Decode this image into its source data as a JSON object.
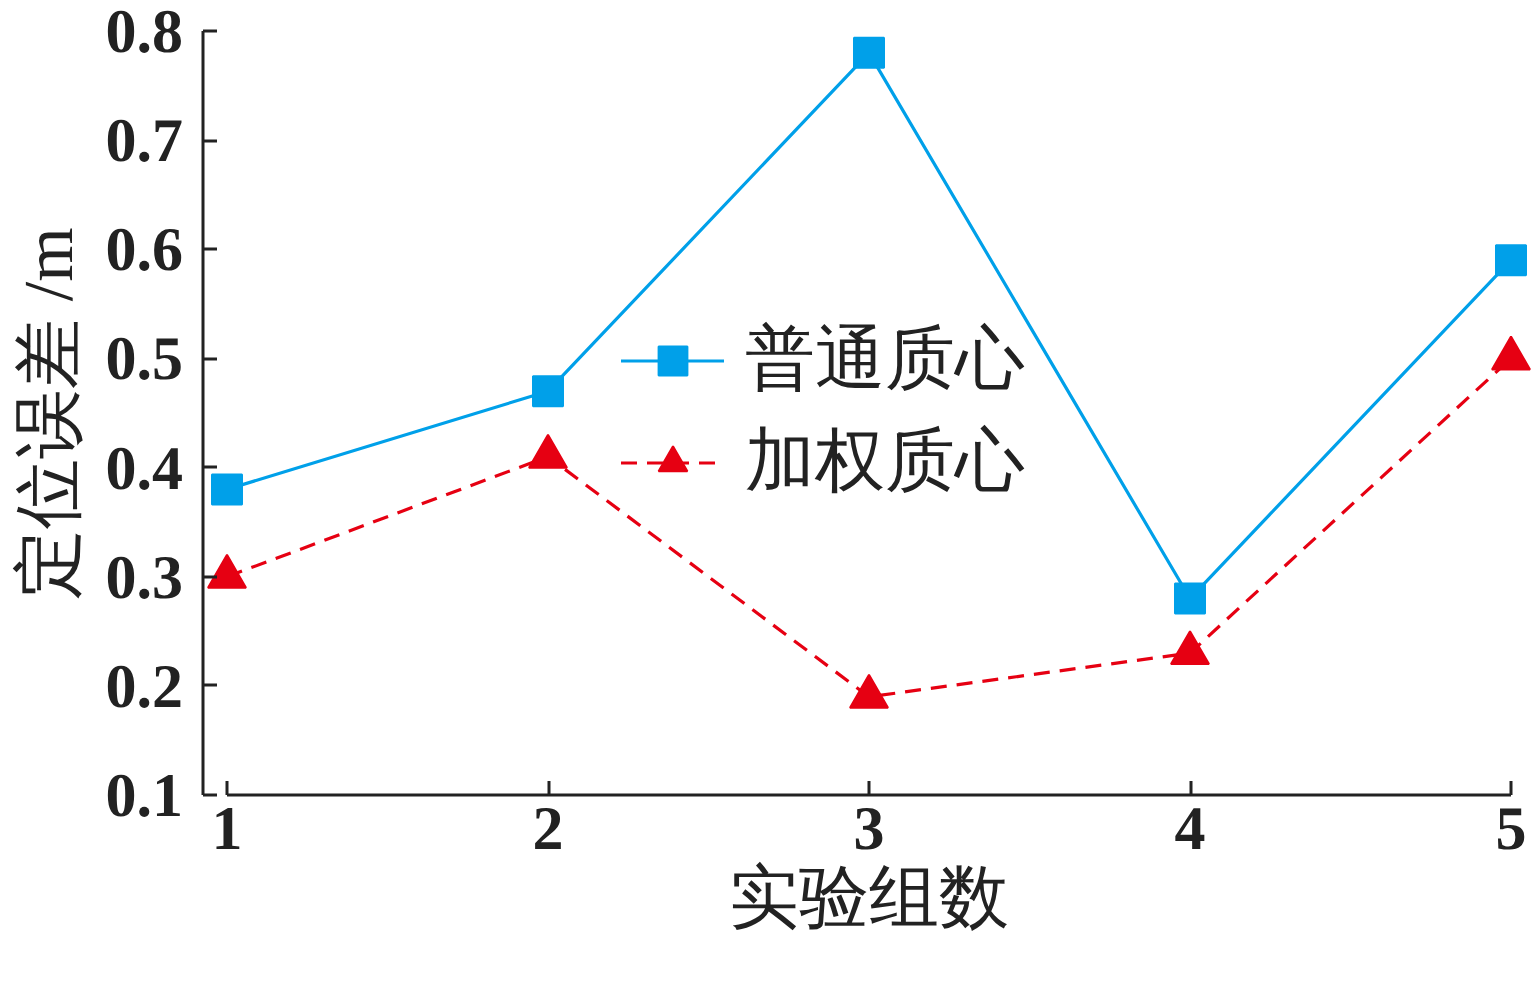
{
  "chart_data": {
    "type": "line",
    "xlabel": "实验组数",
    "ylabel": "定位误差 /m",
    "x": [
      1,
      2,
      3,
      4,
      5
    ],
    "xlim": [
      1,
      5
    ],
    "xticks": [
      1,
      2,
      3,
      4,
      5
    ],
    "ylim": [
      0.1,
      0.8
    ],
    "yticks": [
      0.1,
      0.2,
      0.3,
      0.4,
      0.5,
      0.6,
      0.7,
      0.8
    ],
    "grid": false,
    "legend": "center",
    "series": [
      {
        "name": "普通质心",
        "color": "#00a0e9",
        "marker": "square",
        "line_style": "solid",
        "values": [
          0.38,
          0.47,
          0.78,
          0.28,
          0.59
        ]
      },
      {
        "name": "加权质心",
        "color": "#e60012",
        "marker": "triangle",
        "line_style": "dashed",
        "values": [
          0.3,
          0.41,
          0.19,
          0.23,
          0.5
        ]
      }
    ]
  }
}
